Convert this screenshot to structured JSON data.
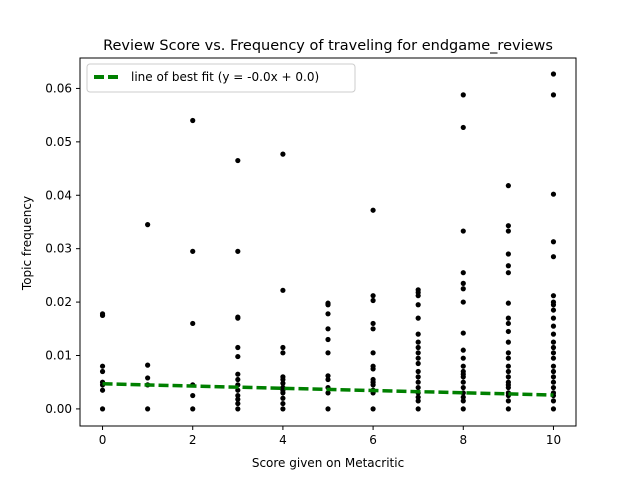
{
  "chart_data": {
    "type": "scatter",
    "title": "Review Score vs. Frequency of traveling for endgame_reviews",
    "xlabel": "Score given on Metacritic",
    "ylabel": "Topic frequency",
    "xlim": [
      -0.5,
      10.5
    ],
    "ylim": [
      -0.0032,
      0.0657
    ],
    "xticks": [
      0,
      2,
      4,
      6,
      8,
      10
    ],
    "yticks": [
      0.0,
      0.01,
      0.02,
      0.03,
      0.04,
      0.05,
      0.06
    ],
    "ytick_labels": [
      "0.00",
      "0.01",
      "0.02",
      "0.03",
      "0.04",
      "0.05",
      "0.06"
    ],
    "grid": false,
    "legend_position": "top-left",
    "points": [
      [
        0,
        0
      ],
      [
        0,
        0.0035
      ],
      [
        0,
        0.0045
      ],
      [
        0,
        0.005
      ],
      [
        0,
        0.007
      ],
      [
        0,
        0.008
      ],
      [
        0,
        0.0175
      ],
      [
        0,
        0.0178
      ],
      [
        1,
        0
      ],
      [
        1,
        0.0045
      ],
      [
        1,
        0.0058
      ],
      [
        1,
        0.0082
      ],
      [
        1,
        0.0345
      ],
      [
        2,
        0
      ],
      [
        2,
        0.0025
      ],
      [
        2,
        0.0045
      ],
      [
        2,
        0.016
      ],
      [
        2,
        0.0295
      ],
      [
        2,
        0.054
      ],
      [
        3,
        0
      ],
      [
        3,
        0.001
      ],
      [
        3,
        0.0018
      ],
      [
        3,
        0.0025
      ],
      [
        3,
        0.0035
      ],
      [
        3,
        0.0045
      ],
      [
        3,
        0.0055
      ],
      [
        3,
        0.0065
      ],
      [
        3,
        0.0098
      ],
      [
        3,
        0.0115
      ],
      [
        3,
        0.017
      ],
      [
        3,
        0.0172
      ],
      [
        3,
        0.0295
      ],
      [
        3,
        0.0465
      ],
      [
        4,
        0
      ],
      [
        4,
        0.001
      ],
      [
        4,
        0.002
      ],
      [
        4,
        0.003
      ],
      [
        4,
        0.0035
      ],
      [
        4,
        0.004
      ],
      [
        4,
        0.0048
      ],
      [
        4,
        0.0055
      ],
      [
        4,
        0.006
      ],
      [
        4,
        0.0105
      ],
      [
        4,
        0.0115
      ],
      [
        4,
        0.0222
      ],
      [
        4,
        0.0477
      ],
      [
        5,
        0
      ],
      [
        5,
        0.003
      ],
      [
        5,
        0.004
      ],
      [
        5,
        0.0055
      ],
      [
        5,
        0.0062
      ],
      [
        5,
        0.0105
      ],
      [
        5,
        0.013
      ],
      [
        5,
        0.015
      ],
      [
        5,
        0.0178
      ],
      [
        5,
        0.0195
      ],
      [
        5,
        0.0198
      ],
      [
        6,
        0
      ],
      [
        6,
        0.003
      ],
      [
        6,
        0.0035
      ],
      [
        6,
        0.0045
      ],
      [
        6,
        0.005
      ],
      [
        6,
        0.0055
      ],
      [
        6,
        0.0075
      ],
      [
        6,
        0.008
      ],
      [
        6,
        0.0105
      ],
      [
        6,
        0.015
      ],
      [
        6,
        0.016
      ],
      [
        6,
        0.0203
      ],
      [
        6,
        0.0212
      ],
      [
        6,
        0.0372
      ],
      [
        7,
        0
      ],
      [
        7,
        0.0015
      ],
      [
        7,
        0.0022
      ],
      [
        7,
        0.003
      ],
      [
        7,
        0.004
      ],
      [
        7,
        0.005
      ],
      [
        7,
        0.006
      ],
      [
        7,
        0.007
      ],
      [
        7,
        0.0085
      ],
      [
        7,
        0.0095
      ],
      [
        7,
        0.0105
      ],
      [
        7,
        0.0115
      ],
      [
        7,
        0.0125
      ],
      [
        7,
        0.014
      ],
      [
        7,
        0.017
      ],
      [
        7,
        0.0195
      ],
      [
        7,
        0.0212
      ],
      [
        7,
        0.0218
      ],
      [
        7,
        0.0223
      ],
      [
        8,
        0
      ],
      [
        8,
        0.0015
      ],
      [
        8,
        0.0022
      ],
      [
        8,
        0.003
      ],
      [
        8,
        0.004
      ],
      [
        8,
        0.005
      ],
      [
        8,
        0.006
      ],
      [
        8,
        0.0065
      ],
      [
        8,
        0.007
      ],
      [
        8,
        0.008
      ],
      [
        8,
        0.0095
      ],
      [
        8,
        0.011
      ],
      [
        8,
        0.0142
      ],
      [
        8,
        0.02
      ],
      [
        8,
        0.0225
      ],
      [
        8,
        0.0235
      ],
      [
        8,
        0.0255
      ],
      [
        8,
        0.0333
      ],
      [
        8,
        0.0527
      ],
      [
        8,
        0.0588
      ],
      [
        9,
        0
      ],
      [
        9,
        0.0015
      ],
      [
        9,
        0.0025
      ],
      [
        9,
        0.003
      ],
      [
        9,
        0.004
      ],
      [
        9,
        0.0045
      ],
      [
        9,
        0.005
      ],
      [
        9,
        0.006
      ],
      [
        9,
        0.007
      ],
      [
        9,
        0.008
      ],
      [
        9,
        0.0095
      ],
      [
        9,
        0.0105
      ],
      [
        9,
        0.0125
      ],
      [
        9,
        0.0145
      ],
      [
        9,
        0.016
      ],
      [
        9,
        0.017
      ],
      [
        9,
        0.0198
      ],
      [
        9,
        0.0255
      ],
      [
        9,
        0.0268
      ],
      [
        9,
        0.029
      ],
      [
        9,
        0.0333
      ],
      [
        9,
        0.0343
      ],
      [
        9,
        0.0418
      ],
      [
        10,
        0
      ],
      [
        10,
        0.0015
      ],
      [
        10,
        0.0025
      ],
      [
        10,
        0.003
      ],
      [
        10,
        0.004
      ],
      [
        10,
        0.005
      ],
      [
        10,
        0.006
      ],
      [
        10,
        0.007
      ],
      [
        10,
        0.008
      ],
      [
        10,
        0.0095
      ],
      [
        10,
        0.0105
      ],
      [
        10,
        0.0115
      ],
      [
        10,
        0.0125
      ],
      [
        10,
        0.014
      ],
      [
        10,
        0.0155
      ],
      [
        10,
        0.017
      ],
      [
        10,
        0.0185
      ],
      [
        10,
        0.0195
      ],
      [
        10,
        0.02
      ],
      [
        10,
        0.0212
      ],
      [
        10,
        0.0285
      ],
      [
        10,
        0.0313
      ],
      [
        10,
        0.0402
      ],
      [
        10,
        0.0588
      ],
      [
        10,
        0.0627
      ]
    ],
    "point_color": "#000000",
    "fit_line": {
      "label": "line of best fit (y = -0.0x + 0.0)",
      "x": [
        0,
        10
      ],
      "y": [
        0.0047,
        0.0026
      ],
      "color": "#008000",
      "style": "dashed"
    }
  }
}
